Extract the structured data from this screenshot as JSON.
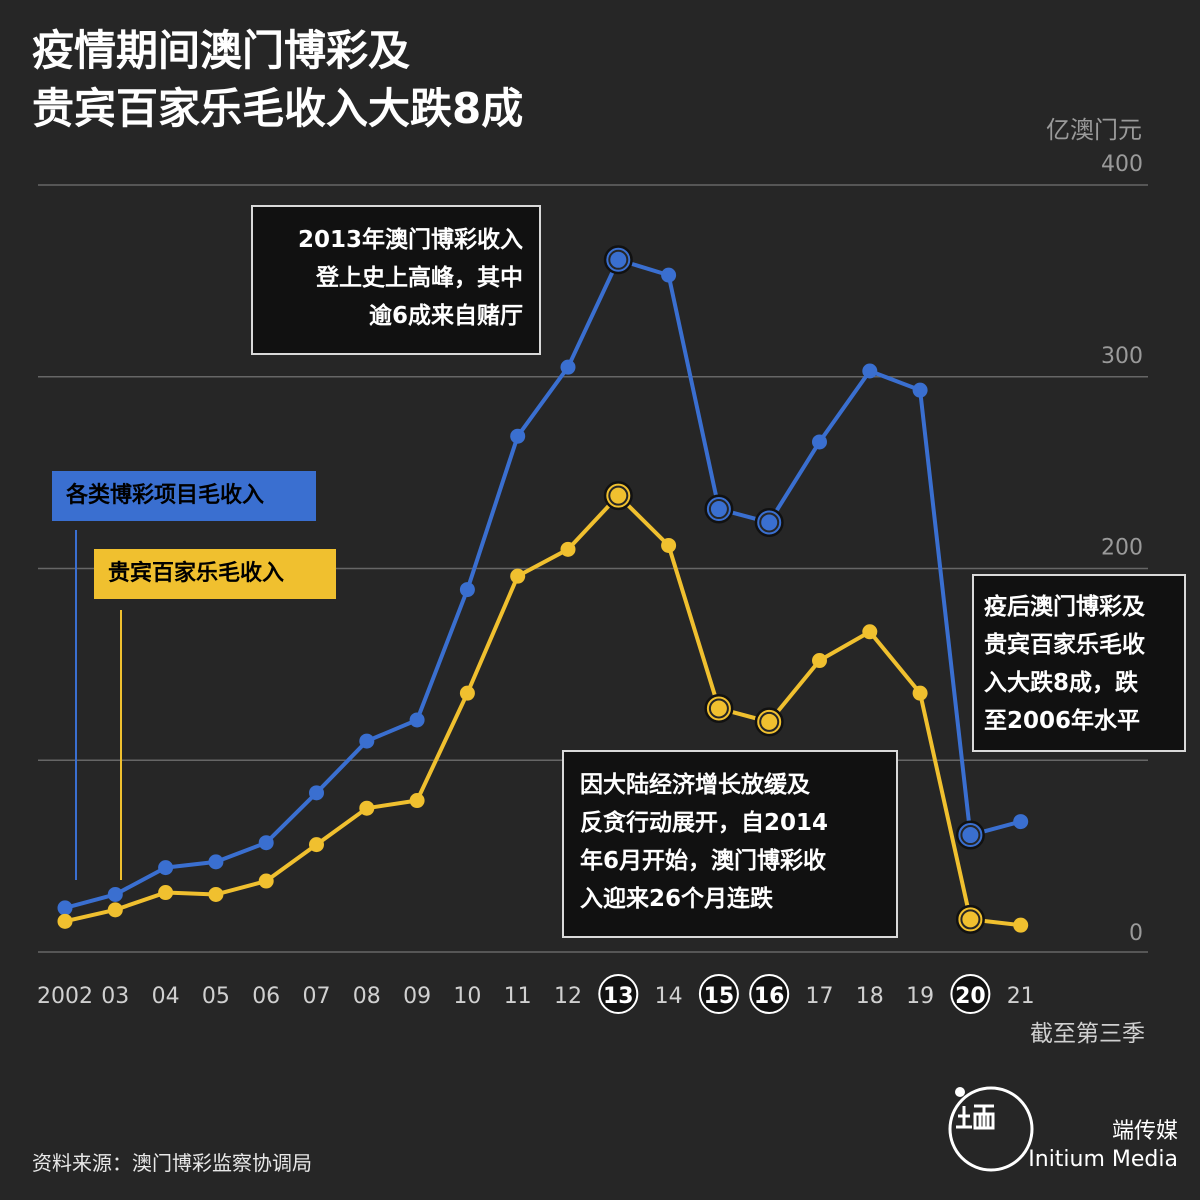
{
  "title": {
    "line1": "疫情期间澳门博彩及",
    "line2": "贵宾百家乐毛收入大跌8成"
  },
  "unit_label": "亿澳门元",
  "x_note": "截至第三季",
  "legend": {
    "series1": "各类博彩项目毛收入",
    "series2": "贵宾百家乐毛收入"
  },
  "annotations": {
    "a1": [
      "2013年澳门博彩收入",
      "登上史上高峰，其中",
      "逾6成来自赌厅"
    ],
    "a2": [
      "因大陆经济增长放缓及",
      "反贪行动展开，自2014",
      "年6月开始，澳门博彩收",
      "入迎来26个月连跌"
    ],
    "a3": [
      "疫后澳门博彩及",
      "贵宾百家乐毛收",
      "入大跌8成，跌",
      "至2006年水平"
    ]
  },
  "footnote": "资料来源：澳门博彩监察协调局",
  "brand": {
    "cn": "端传媒",
    "en": "Initium Media"
  },
  "colors": {
    "background": "#262626",
    "blue": "#3a6fd0",
    "yellow": "#f0c02f",
    "grid": "#666666",
    "tick": "#9a9a9a"
  },
  "chart_data": {
    "type": "line",
    "x": [
      "2002",
      "03",
      "04",
      "05",
      "06",
      "07",
      "08",
      "09",
      "10",
      "11",
      "12",
      "13",
      "14",
      "15",
      "16",
      "17",
      "18",
      "19",
      "20",
      "21"
    ],
    "highlighted_x": [
      "13",
      "15",
      "16",
      "20"
    ],
    "y_ticks": [
      0,
      200,
      300,
      400
    ],
    "ylim": [
      0,
      400
    ],
    "grid": true,
    "series": [
      {
        "name": "各类博彩项目毛收入",
        "color": "#3a6fd0",
        "values": [
          23,
          30,
          44,
          47,
          57,
          83,
          110,
          121,
          189,
          269,
          305,
          361,
          353,
          231,
          224,
          266,
          303,
          293,
          61,
          68
        ],
        "highlight": [
          false,
          false,
          false,
          false,
          false,
          false,
          false,
          false,
          false,
          false,
          false,
          true,
          false,
          true,
          true,
          false,
          false,
          false,
          true,
          false
        ]
      },
      {
        "name": "贵宾百家乐毛收入",
        "color": "#f0c02f",
        "values": [
          16,
          22,
          31,
          30,
          37,
          56,
          75,
          79,
          135,
          196,
          210,
          238,
          212,
          127,
          120,
          152,
          167,
          135,
          17,
          14
        ],
        "highlight": [
          false,
          false,
          false,
          false,
          false,
          false,
          false,
          false,
          false,
          false,
          false,
          true,
          false,
          true,
          true,
          false,
          false,
          false,
          true,
          false
        ]
      }
    ]
  }
}
